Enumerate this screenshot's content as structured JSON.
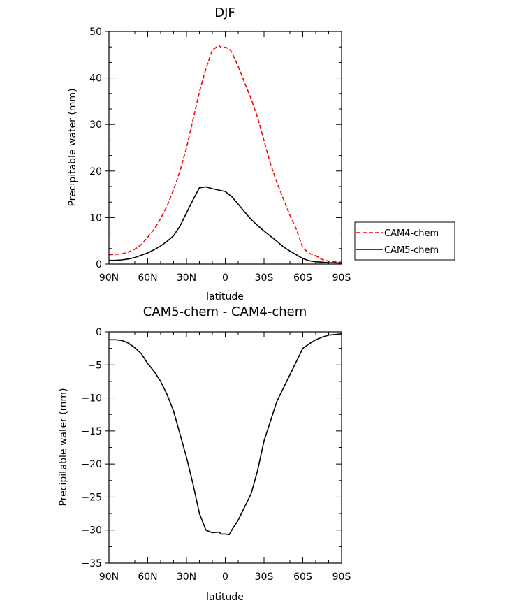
{
  "chart_data": [
    {
      "type": "line",
      "title": "DJF",
      "xlabel": "latitude",
      "ylabel": "Precipitable water (mm)",
      "xlim": [
        90,
        -90
      ],
      "ylim": [
        0,
        50
      ],
      "x_ticks": [
        90,
        60,
        30,
        0,
        -30,
        -60,
        -90
      ],
      "x_tick_labels": [
        "90N",
        "60N",
        "30N",
        "0",
        "30S",
        "60S",
        "90S"
      ],
      "y_ticks": [
        0,
        10,
        20,
        30,
        40,
        50
      ],
      "y_tick_labels": [
        "0",
        "10",
        "20",
        "30",
        "40",
        "50"
      ],
      "legend_position": "right",
      "series": [
        {
          "name": "CAM4-chem",
          "color": "#ff0000",
          "dash": "dashed",
          "x": [
            90,
            85,
            80,
            75,
            70,
            65,
            60,
            55,
            50,
            45,
            40,
            35,
            30,
            25,
            20,
            15,
            10,
            5,
            3,
            0,
            -3,
            -5,
            -10,
            -15,
            -20,
            -25,
            -30,
            -35,
            -40,
            -45,
            -50,
            -55,
            -60,
            -65,
            -70,
            -75,
            -80,
            -85,
            -90
          ],
          "y": [
            2.0,
            2.1,
            2.2,
            2.6,
            3.2,
            4.2,
            5.8,
            7.5,
            9.8,
            12.5,
            16.0,
            20.0,
            25.0,
            31.0,
            37.0,
            42.0,
            46.0,
            47.0,
            46.5,
            46.6,
            46.3,
            45.5,
            42.5,
            39.0,
            35.5,
            31.5,
            26.5,
            21.5,
            17.5,
            14.0,
            10.5,
            7.5,
            3.5,
            2.3,
            1.8,
            1.0,
            0.6,
            0.5,
            0.4
          ]
        },
        {
          "name": "CAM5-chem",
          "color": "#000000",
          "dash": "solid",
          "x": [
            90,
            85,
            80,
            75,
            70,
            65,
            60,
            55,
            50,
            45,
            40,
            35,
            30,
            25,
            20,
            15,
            10,
            5,
            0,
            -5,
            -10,
            -15,
            -20,
            -25,
            -30,
            -35,
            -40,
            -45,
            -50,
            -55,
            -60,
            -65,
            -70,
            -75,
            -80,
            -85,
            -90
          ],
          "y": [
            0.8,
            0.8,
            0.9,
            1.1,
            1.4,
            1.9,
            2.4,
            3.1,
            3.9,
            4.9,
            6.1,
            8.2,
            11.0,
            13.8,
            16.4,
            16.6,
            16.2,
            15.9,
            15.6,
            14.5,
            12.9,
            11.2,
            9.6,
            8.3,
            7.1,
            6.0,
            4.9,
            3.7,
            2.8,
            2.0,
            1.2,
            0.7,
            0.5,
            0.4,
            0.3,
            0.25,
            0.2
          ]
        }
      ]
    },
    {
      "type": "line",
      "title": "CAM5-chem - CAM4-chem",
      "xlabel": "latitude",
      "ylabel": "Precipitable water (mm)",
      "xlim": [
        90,
        -90
      ],
      "ylim": [
        -35,
        0
      ],
      "x_ticks": [
        90,
        60,
        30,
        0,
        -30,
        -60,
        -90
      ],
      "x_tick_labels": [
        "90N",
        "60N",
        "30N",
        "0",
        "30S",
        "60S",
        "90S"
      ],
      "y_ticks": [
        0,
        -5,
        -10,
        -15,
        -20,
        -25,
        -30,
        -35
      ],
      "y_tick_labels": [
        "0",
        "−5",
        "−10",
        "−15",
        "−20",
        "−25",
        "−30",
        "−35"
      ],
      "series": [
        {
          "color": "#000000",
          "dash": "solid",
          "x": [
            90,
            85,
            80,
            75,
            70,
            65,
            60,
            55,
            50,
            45,
            40,
            35,
            30,
            25,
            20,
            15,
            10,
            5,
            3,
            0,
            -3,
            -5,
            -10,
            -15,
            -20,
            -25,
            -30,
            -35,
            -40,
            -45,
            -50,
            -55,
            -60,
            -65,
            -70,
            -75,
            -80,
            -85,
            -90
          ],
          "y": [
            -1.2,
            -1.2,
            -1.3,
            -1.7,
            -2.4,
            -3.3,
            -4.8,
            -6.0,
            -7.5,
            -9.5,
            -12.0,
            -15.5,
            -19.0,
            -23.0,
            -27.5,
            -30.0,
            -30.4,
            -30.3,
            -30.6,
            -30.6,
            -30.7,
            -30.0,
            -28.5,
            -26.5,
            -24.5,
            -21.0,
            -16.5,
            -13.5,
            -10.5,
            -8.5,
            -6.5,
            -4.5,
            -2.5,
            -1.8,
            -1.2,
            -0.8,
            -0.5,
            -0.4,
            -0.3
          ]
        }
      ]
    }
  ]
}
